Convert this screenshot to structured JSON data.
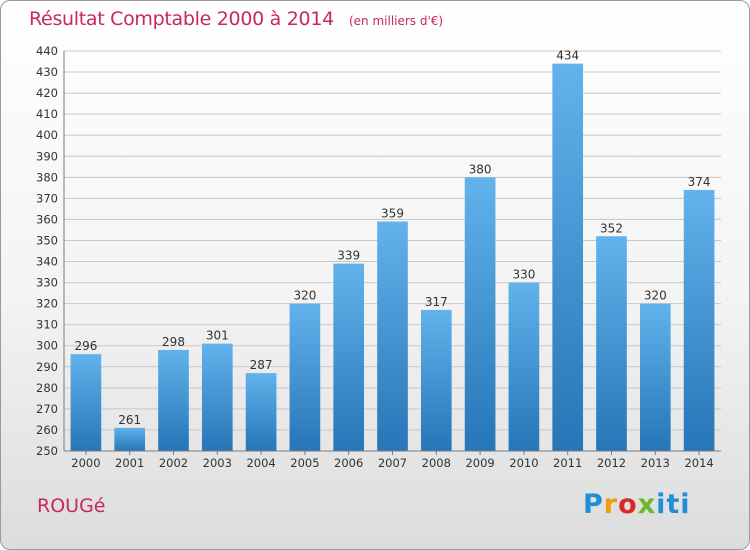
{
  "header": {
    "title": "Résultat Comptable 2000 à 2014",
    "subtitle": "(en milliers d'€)"
  },
  "footer": {
    "commune": "ROUGé",
    "brand": "Proxiti"
  },
  "colors": {
    "title": "#c8275f",
    "bar_light": "#62b2ec",
    "bar_dark": "#2676b8",
    "grid": "#c8c8c8",
    "axis": "#7a7a7a"
  },
  "chart_data": {
    "type": "bar",
    "title": "Résultat Comptable 2000 à 2014",
    "subtitle": "(en milliers d'€)",
    "xlabel": "",
    "ylabel": "",
    "categories": [
      "2000",
      "2001",
      "2002",
      "2003",
      "2004",
      "2005",
      "2006",
      "2007",
      "2008",
      "2009",
      "2010",
      "2011",
      "2012",
      "2013",
      "2014"
    ],
    "values": [
      296,
      261,
      298,
      301,
      287,
      320,
      339,
      359,
      317,
      380,
      330,
      434,
      352,
      320,
      374
    ],
    "ylim": [
      250,
      440
    ],
    "ytick_step": 10,
    "grid": true,
    "data_labels": true
  }
}
